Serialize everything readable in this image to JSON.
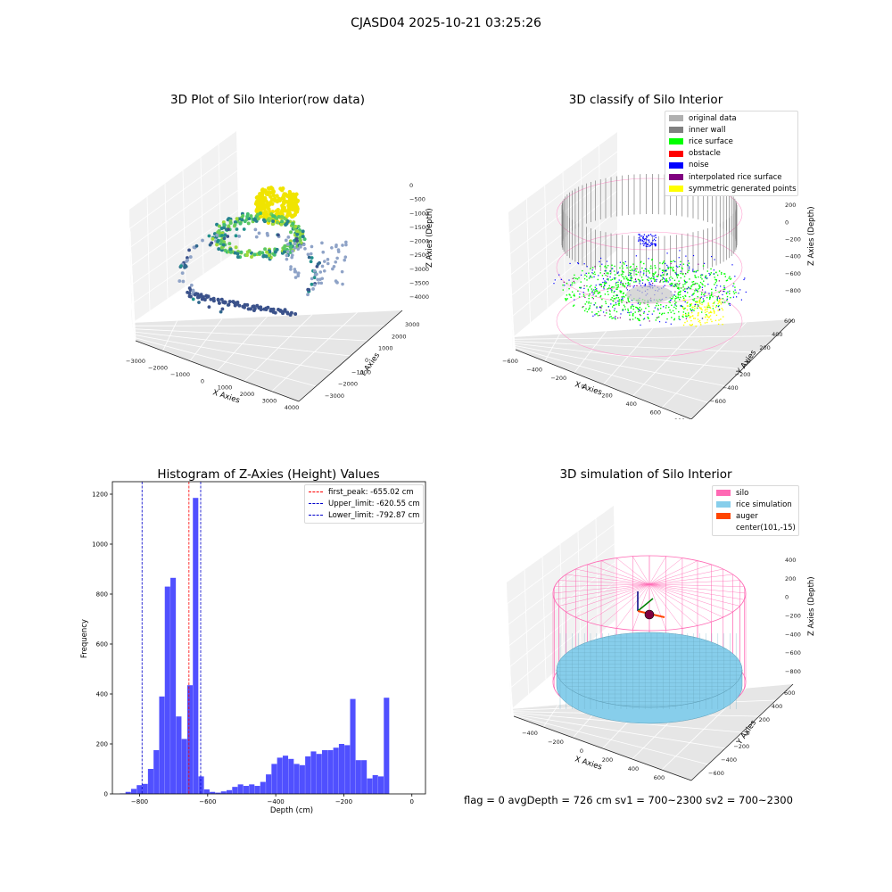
{
  "suptitle": "CJASD04 2025-10-21 03:25:26",
  "footer": "flag = 0     avgDepth = 726 cm  sv1 = 700~2300  sv2 = 700~2300",
  "colors": {
    "orig": "#b0b0b0",
    "inner": "#808080",
    "rice": "#00ff00",
    "obstacle": "#ff0000",
    "noise": "#0000ff",
    "interp": "#800080",
    "sym": "#ffff00",
    "silo": "#ff69b4",
    "ricesim": "#87ceeb",
    "auger": "#ff4500",
    "hist": "#5050ff"
  },
  "panel1": {
    "title": "3D Plot of Silo Interior(row data)",
    "xlabel": "X Axies",
    "ylabel": "Y Axies",
    "zlabel": "Z Axies (Depth)",
    "xticks": [
      "−3000",
      "−2000",
      "−1000",
      "0",
      "1000",
      "2000",
      "3000",
      "4000"
    ],
    "yticks": [
      "−3000",
      "−2000",
      "−1000",
      "0",
      "1000",
      "2000",
      "3000"
    ],
    "zticks": [
      "0",
      "−500",
      "−1000",
      "−1500",
      "−2000",
      "−2500",
      "−3000",
      "−3500",
      "−4000"
    ]
  },
  "panel2": {
    "title": "3D classify of Silo Interior",
    "xlabel": "X Axies",
    "ylabel": "Y Axies",
    "zlabel": "Z Axies (Depth)",
    "xticks": [
      "−600",
      "−400",
      "−200",
      "0",
      "200",
      "400",
      "600",
      "800"
    ],
    "yticks": [
      "−600",
      "−400",
      "−200",
      "0",
      "200",
      "400",
      "600"
    ],
    "zticks": [
      "400",
      "200",
      "0",
      "−200",
      "−400",
      "−600",
      "−800"
    ],
    "legend": [
      {
        "label": "original data",
        "color": "#b0b0b0"
      },
      {
        "label": "inner wall",
        "color": "#808080"
      },
      {
        "label": "rice surface",
        "color": "#00ff00"
      },
      {
        "label": "obstacle",
        "color": "#ff0000"
      },
      {
        "label": "noise",
        "color": "#0000ff"
      },
      {
        "label": "interpolated rice surface",
        "color": "#800080"
      },
      {
        "label": "symmetric generated points",
        "color": "#ffff00"
      }
    ]
  },
  "panel4": {
    "title": "3D simulation of Silo Interior",
    "xlabel": "X Axies",
    "ylabel": "Y Axies",
    "zlabel": "Z Axies (Depth)",
    "xticks": [
      "−400",
      "−200",
      "0",
      "200",
      "400",
      "600"
    ],
    "yticks": [
      "−600",
      "−400",
      "−200",
      "0",
      "200",
      "400",
      "600"
    ],
    "zticks": [
      "400",
      "200",
      "0",
      "−200",
      "−400",
      "−600",
      "−800"
    ],
    "legend": [
      {
        "label": "silo",
        "color": "#ff69b4"
      },
      {
        "label": "rice simulation",
        "color": "#87ceeb"
      },
      {
        "label": "auger",
        "color": "#ff4500"
      },
      {
        "label": "center(101,-15)",
        "color": ""
      }
    ]
  },
  "chart_data": {
    "type": "bar",
    "title": "Histogram of Z-Axies (Height) Values",
    "xlabel": "Depth (cm)",
    "ylabel": "Frequency",
    "xlim": [
      -880,
      40
    ],
    "ylim": [
      0,
      1250
    ],
    "xticks": [
      -800,
      -600,
      -400,
      -200,
      0
    ],
    "yticks": [
      0,
      200,
      400,
      600,
      800,
      1000,
      1200
    ],
    "bin_width": 16.5,
    "bin_start": -858,
    "values": [
      2,
      8,
      20,
      35,
      40,
      100,
      175,
      390,
      830,
      865,
      310,
      220,
      435,
      1185,
      70,
      18,
      8,
      5,
      10,
      15,
      28,
      38,
      32,
      38,
      32,
      48,
      78,
      120,
      145,
      153,
      140,
      120,
      115,
      150,
      170,
      160,
      175,
      175,
      185,
      200,
      195,
      380,
      135,
      135,
      62,
      75,
      70,
      385
    ],
    "vlines": [
      {
        "label": "first_peak: -655.02 cm",
        "x": -655.02,
        "color": "#ff0000"
      },
      {
        "label": "Upper_limit: -620.55 cm",
        "x": -620.55,
        "color": "#0000cc"
      },
      {
        "label": "Lower_limit: -792.87 cm",
        "x": -792.87,
        "color": "#0000cc"
      }
    ],
    "legend_position": "upper right"
  }
}
